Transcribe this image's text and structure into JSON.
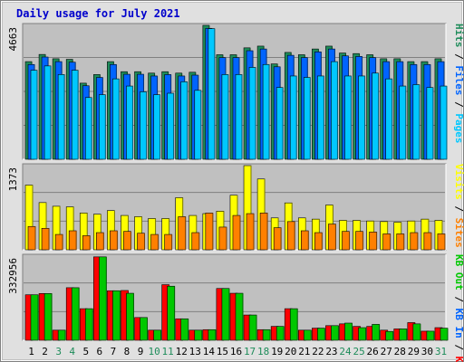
{
  "chart_data": {
    "type": "bar",
    "title": "Daily usage for July 2021",
    "categories": [
      "1",
      "2",
      "3",
      "4",
      "5",
      "6",
      "7",
      "8",
      "9",
      "10",
      "11",
      "12",
      "13",
      "14",
      "15",
      "16",
      "17",
      "18",
      "19",
      "20",
      "21",
      "22",
      "23",
      "24",
      "25",
      "26",
      "27",
      "28",
      "29",
      "30",
      "31"
    ],
    "weekend_days": [
      "3",
      "4",
      "10",
      "11",
      "17",
      "18",
      "24",
      "25",
      "31"
    ],
    "panels": [
      {
        "name": "hits-files-pages",
        "max_label": "4663",
        "ymax": 4663,
        "legend": [
          {
            "text": "Pages",
            "color": "#00c8ff"
          },
          {
            "text": " / ",
            "color": "#000000"
          },
          {
            "text": "Files",
            "color": "#0064ff"
          },
          {
            "text": " / ",
            "color": "#000000"
          },
          {
            "text": "Hits",
            "color": "#1e8c5a"
          }
        ],
        "series": [
          {
            "name": "Hits",
            "color": "#1e8c5a",
            "values": [
              3400,
              3650,
              3500,
              3480,
              2650,
              2950,
              3400,
              3050,
              3050,
              3000,
              3050,
              3000,
              3030,
              4663,
              3640,
              3640,
              3880,
              3940,
              3320,
              3720,
              3640,
              3840,
              3940,
              3700,
              3680,
              3640,
              3500,
              3500,
              3400,
              3400,
              3500
            ]
          },
          {
            "name": "Files",
            "color": "#0064ff",
            "values": [
              3300,
              3560,
              3400,
              3380,
              2560,
              2850,
              3300,
              2960,
              2960,
              2900,
              2950,
              2900,
              2930,
              4560,
              3540,
              3540,
              3780,
              3840,
              3220,
              3620,
              3540,
              3740,
              3840,
              3600,
              3580,
              3540,
              3400,
              3400,
              3300,
              3300,
              3400
            ]
          },
          {
            "name": "Pages",
            "color": "#00c8ff",
            "values": [
              3100,
              3250,
              2950,
              3100,
              2150,
              2250,
              2800,
              2550,
              2350,
              2250,
              2300,
              2700,
              2400,
              4550,
              2950,
              2950,
              3200,
              3300,
              2500,
              2900,
              2850,
              2900,
              3400,
              2900,
              2900,
              3000,
              2800,
              2550,
              2600,
              2500,
              2550
            ]
          }
        ]
      },
      {
        "name": "sites-visits",
        "max_label": "1373",
        "ymax": 1373,
        "legend": [
          {
            "text": "Sites",
            "color": "#ff8000"
          },
          {
            "text": " / ",
            "color": "#000000"
          },
          {
            "text": "Visits",
            "color": "#ffff00"
          }
        ],
        "series": [
          {
            "name": "Visits",
            "color": "#ffff00",
            "values": [
              1055,
              770,
              710,
              700,
              600,
              580,
              640,
              560,
              540,
              510,
              510,
              850,
              560,
              590,
              630,
              890,
              1373,
              1155,
              520,
              765,
              520,
              500,
              730,
              480,
              480,
              470,
              460,
              450,
              470,
              500,
              480
            ]
          },
          {
            "name": "Sites",
            "color": "#ff8000",
            "values": [
              380,
              350,
              250,
              310,
              230,
              280,
              310,
              300,
              270,
              250,
              250,
              540,
              280,
              600,
              370,
              560,
              590,
              600,
              360,
              460,
              310,
              280,
              420,
              300,
              300,
              290,
              260,
              260,
              280,
              280,
              260
            ]
          }
        ]
      },
      {
        "name": "kbf-kbin-kbout",
        "max_label": "332956",
        "ymax": 332956,
        "legend": [
          {
            "text": "KB F",
            "color": "#ff0000"
          },
          {
            "text": " / ",
            "color": "#000000"
          },
          {
            "text": "KB In",
            "color": "#0064ff"
          },
          {
            "text": " / ",
            "color": "#000000"
          },
          {
            "text": "KB Out",
            "color": "#00c800"
          }
        ],
        "series": [
          {
            "name": "KB F",
            "color": "#ff0000",
            "values": [
              180000,
              185000,
              40000,
              208000,
              125000,
              330000,
              196000,
              197000,
              90000,
              40000,
              220000,
              85000,
              40000,
              42000,
              205000,
              186000,
              100000,
              42000,
              55000,
              125000,
              40000,
              48000,
              58000,
              65000,
              55000,
              55000,
              40000,
              45000,
              70000,
              36000,
              50000
            ]
          },
          {
            "name": "KB In",
            "color": "#0064ff",
            "values": [
              500,
              500,
              300,
              500,
              400,
              800,
              500,
              500,
              300,
              200,
              600,
              300,
              200,
              200,
              500,
              500,
              300,
              200,
              200,
              300,
              200,
              200,
              200,
              200,
              200,
              200,
              200,
              200,
              200,
              200,
              200
            ]
          },
          {
            "name": "KB Out",
            "color": "#00c800",
            "values": [
              180000,
              185000,
              40000,
              208000,
              125000,
              330000,
              196000,
              186000,
              90000,
              40000,
              214000,
              85000,
              40000,
              42000,
              205000,
              186000,
              100000,
              42000,
              55000,
              125000,
              40000,
              48000,
              58000,
              68000,
              50000,
              63000,
              35000,
              45000,
              65000,
              36000,
              48000
            ]
          }
        ]
      }
    ],
    "grid": true,
    "legend_placement": "right-vertical"
  }
}
